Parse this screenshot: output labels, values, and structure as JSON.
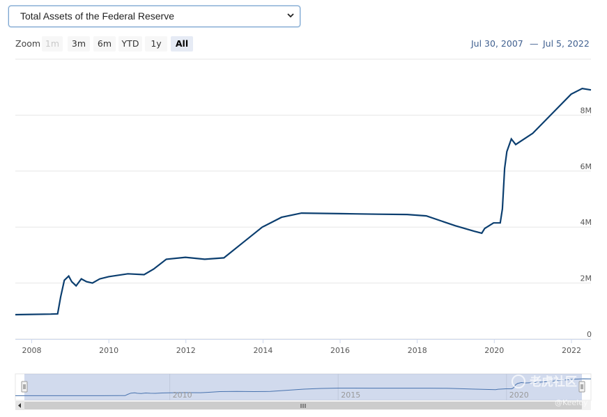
{
  "selector": {
    "value": "Total Assets of the Federal Reserve"
  },
  "zoom": {
    "label": "Zoom",
    "buttons": [
      {
        "label": "1m",
        "state": "disabled"
      },
      {
        "label": "3m",
        "state": "normal"
      },
      {
        "label": "6m",
        "state": "normal"
      },
      {
        "label": "YTD",
        "state": "normal"
      },
      {
        "label": "1y",
        "state": "normal"
      },
      {
        "label": "All",
        "state": "active"
      }
    ]
  },
  "range": {
    "from": "Jul 30, 2007",
    "to": "Jul 5, 2022",
    "separator": "—"
  },
  "navigator": {
    "tick_labels": [
      "2010",
      "2015",
      "2020"
    ]
  },
  "watermark": {
    "text": "老虎社区",
    "handle": "@Keeley"
  },
  "colors": {
    "line": "#0b3e6f",
    "grid": "#e6e6e6",
    "navigator_mask": "rgba(102,133,194,0.3)"
  },
  "chart_data": {
    "type": "line",
    "title": "",
    "xlabel": "",
    "ylabel": "",
    "x_ticks": [
      "2008",
      "2010",
      "2012",
      "2014",
      "2016",
      "2018",
      "2020",
      "2022"
    ],
    "y_ticks": [
      "0",
      "2M",
      "4M",
      "6M",
      "8M"
    ],
    "ylim": [
      0,
      10000000
    ],
    "xlim": [
      "2007-07-30",
      "2022-07-05"
    ],
    "grid": true,
    "series": [
      {
        "values": [
          [
            "2007-07-30",
            870000
          ],
          [
            "2007-12-31",
            880000
          ],
          [
            "2008-06-30",
            890000
          ],
          [
            "2008-09-03",
            900000
          ],
          [
            "2008-10-01",
            1500000
          ],
          [
            "2008-11-05",
            2100000
          ],
          [
            "2008-12-17",
            2250000
          ],
          [
            "2009-01-14",
            2050000
          ],
          [
            "2009-02-25",
            1900000
          ],
          [
            "2009-04-15",
            2150000
          ],
          [
            "2009-06-03",
            2050000
          ],
          [
            "2009-07-29",
            2000000
          ],
          [
            "2009-10-07",
            2150000
          ],
          [
            "2009-12-30",
            2230000
          ],
          [
            "2010-06-30",
            2330000
          ],
          [
            "2010-12-01",
            2300000
          ],
          [
            "2011-03-02",
            2500000
          ],
          [
            "2011-06-29",
            2850000
          ],
          [
            "2011-12-28",
            2920000
          ],
          [
            "2012-06-27",
            2850000
          ],
          [
            "2012-12-26",
            2900000
          ],
          [
            "2013-06-26",
            3450000
          ],
          [
            "2013-12-25",
            4000000
          ],
          [
            "2014-06-25",
            4350000
          ],
          [
            "2014-12-31",
            4500000
          ],
          [
            "2015-12-30",
            4480000
          ],
          [
            "2016-12-28",
            4460000
          ],
          [
            "2017-09-27",
            4450000
          ],
          [
            "2018-03-28",
            4400000
          ],
          [
            "2018-12-26",
            4050000
          ],
          [
            "2019-06-26",
            3850000
          ],
          [
            "2019-09-04",
            3780000
          ],
          [
            "2019-10-02",
            3950000
          ],
          [
            "2019-12-25",
            4150000
          ],
          [
            "2020-02-26",
            4150000
          ],
          [
            "2020-03-18",
            4650000
          ],
          [
            "2020-04-08",
            6100000
          ],
          [
            "2020-04-29",
            6700000
          ],
          [
            "2020-06-10",
            7150000
          ],
          [
            "2020-07-22",
            6950000
          ],
          [
            "2020-12-30",
            7350000
          ],
          [
            "2021-06-30",
            8050000
          ],
          [
            "2021-12-29",
            8750000
          ],
          [
            "2022-04-13",
            8950000
          ],
          [
            "2022-07-05",
            8900000
          ]
        ]
      }
    ]
  }
}
